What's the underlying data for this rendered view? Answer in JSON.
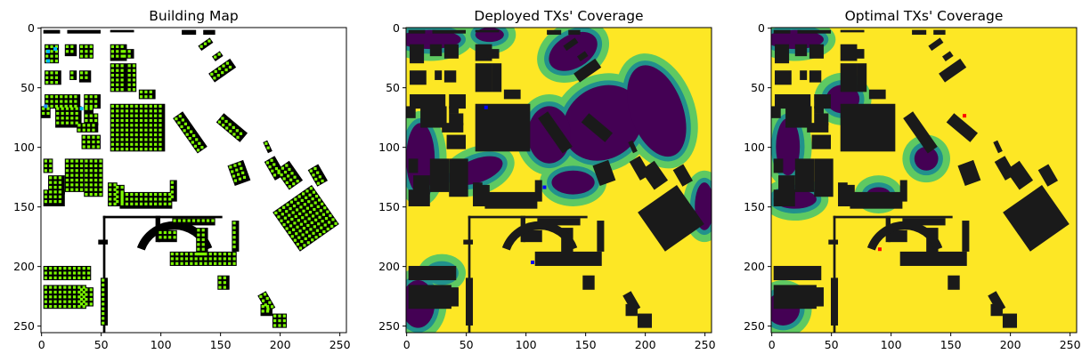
{
  "figure": {
    "background": "#ffffff"
  },
  "chart_data": [
    {
      "type": "heatmap",
      "title": "Building Map",
      "xlabel": "",
      "ylabel": "",
      "xlim": [
        0,
        256
      ],
      "ylim": [
        256,
        0
      ],
      "xticks": [
        0,
        50,
        100,
        150,
        200,
        250
      ],
      "yticks": [
        0,
        50,
        100,
        150,
        200,
        250
      ],
      "grid": false,
      "colors": {
        "background": "#ffffff",
        "building": "#000000",
        "candidate": "#7cfc00",
        "deployed": "#00bfff",
        "deployed_marker": "#1e90ff"
      }
    },
    {
      "type": "heatmap",
      "title": "Deployed TXs' Coverage",
      "xlabel": "",
      "ylabel": "",
      "xlim": [
        0,
        256
      ],
      "ylim": [
        256,
        0
      ],
      "xticks": [
        0,
        50,
        100,
        150,
        200,
        250
      ],
      "yticks": [
        0,
        50,
        100,
        150,
        200,
        250
      ],
      "grid": false,
      "colors": {
        "high": "#fde725",
        "mid_high": "#5ec962",
        "mid_low": "#21918c",
        "low": "#440154",
        "building": "#1a1a1a",
        "tx": "#0000ff"
      }
    },
    {
      "type": "heatmap",
      "title": "Optimal TXs' Coverage",
      "xlabel": "",
      "ylabel": "",
      "xlim": [
        0,
        256
      ],
      "ylim": [
        256,
        0
      ],
      "xticks": [
        0,
        50,
        100,
        150,
        200,
        250
      ],
      "yticks": [
        0,
        50,
        100,
        150,
        200,
        250
      ],
      "grid": false,
      "colors": {
        "high": "#fde725",
        "mid_high": "#5ec962",
        "mid_low": "#21918c",
        "low": "#440154",
        "building": "#1a1a1a",
        "tx": "#ff0000"
      }
    }
  ]
}
